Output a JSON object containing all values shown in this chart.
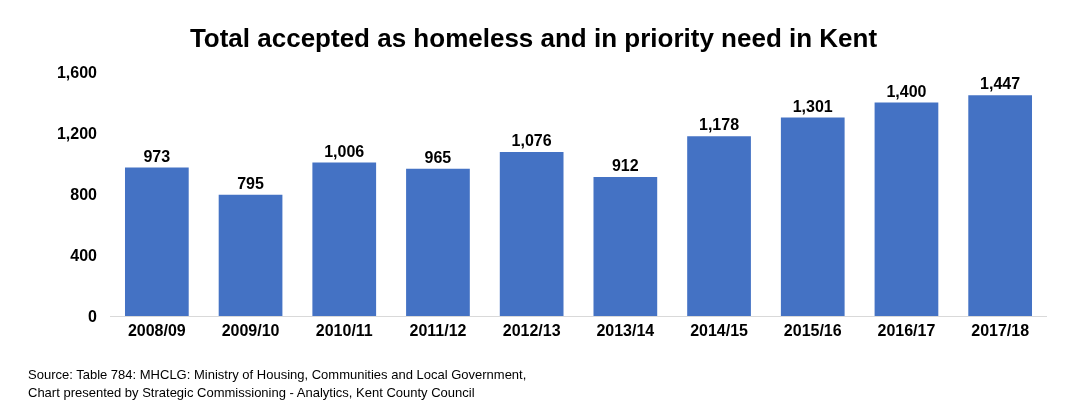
{
  "chart_data": {
    "type": "bar",
    "title": "Total accepted as homeless and in priority need in Kent",
    "categories": [
      "2008/09",
      "2009/10",
      "2010/11",
      "2011/12",
      "2012/13",
      "2013/14",
      "2014/15",
      "2015/16",
      "2016/17",
      "2017/18"
    ],
    "values": [
      973,
      795,
      1006,
      965,
      1076,
      912,
      1178,
      1301,
      1400,
      1447
    ],
    "value_labels": [
      "973",
      "795",
      "1,006",
      "965",
      "1,076",
      "912",
      "1,178",
      "1,301",
      "1,400",
      "1,447"
    ],
    "color": "#4472c4",
    "ylim": [
      0,
      1600
    ],
    "yticks": [
      0,
      400,
      800,
      {
        "value": 1200,
        "label": "1,200"
      },
      {
        "value": 1600,
        "label": "1,600"
      }
    ],
    "annotations": [
      "Source: Table 784: MHCLG: Ministry of Housing, Communities and Local Government,",
      "Chart presented by Strategic Commissioning - Analytics, Kent County Council"
    ]
  }
}
